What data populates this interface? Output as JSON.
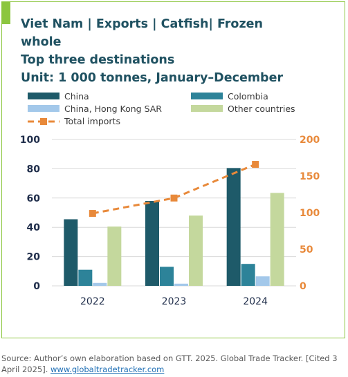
{
  "title": {
    "line1": "Viet Nam | Exports | Catfish| Frozen",
    "line2": "whole",
    "line3": "Top three destinations",
    "line4": "Unit: 1 000 tonnes, January–December"
  },
  "source": {
    "text": "Source: Author’s own elaboration based on GTT. 2025. Global Trade Tracker. [Cited 3 April 2025].",
    "link": "www.globaltradetracker.com"
  },
  "colors": {
    "accent": "#8cc63f",
    "title": "#1f5161",
    "right_axis": "#e8893a"
  },
  "chart_data": {
    "type": "bar",
    "categories": [
      "2022",
      "2023",
      "2024"
    ],
    "series": [
      {
        "name": "China",
        "type": "bar",
        "axis": "left",
        "color": "#1e5a69",
        "values": [
          45.5,
          58,
          80.5
        ]
      },
      {
        "name": "Colombia",
        "type": "bar",
        "axis": "left",
        "color": "#2d8399",
        "values": [
          11,
          13,
          15
        ]
      },
      {
        "name": "China, Hong Kong SAR",
        "type": "bar",
        "axis": "left",
        "color": "#a3c8ea",
        "values": [
          2,
          1.5,
          6.5
        ]
      },
      {
        "name": "Other countries",
        "type": "bar",
        "axis": "left",
        "color": "#c4d89d",
        "values": [
          40.5,
          48,
          63.5
        ]
      },
      {
        "name": "Total imports",
        "type": "line",
        "axis": "right",
        "color": "#e8893a",
        "dashed": true,
        "marker": "square",
        "values": [
          99,
          120,
          166
        ]
      }
    ],
    "left_axis": {
      "ylim": [
        0,
        100
      ],
      "ticks": [
        "0",
        "20",
        "40",
        "60",
        "80",
        "100"
      ]
    },
    "right_axis": {
      "ylim": [
        0,
        200
      ],
      "ticks": [
        "0",
        "50",
        "100",
        "150",
        "200"
      ]
    },
    "grid": "horizontal",
    "legend": "top"
  }
}
